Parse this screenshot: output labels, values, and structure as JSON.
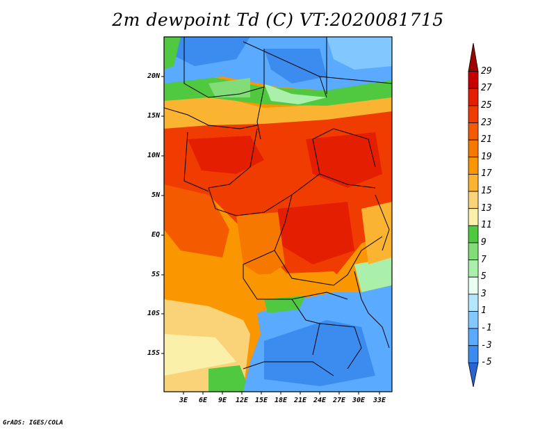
{
  "title": "2m dewpoint Td (C) VT:2020081715",
  "credit": "GrADS: IGES/COLA",
  "latitude_labels": [
    "20N",
    "15N",
    "10N",
    "5N",
    "EQ",
    "5S",
    "10S",
    "15S"
  ],
  "longitude_labels": [
    "3E",
    "6E",
    "9E",
    "12E",
    "15E",
    "18E",
    "21E",
    "24E",
    "27E",
    "30E",
    "33E"
  ],
  "colorbar": {
    "labels": [
      "29",
      "27",
      "25",
      "23",
      "21",
      "19",
      "17",
      "15",
      "13",
      "11",
      "9",
      "7",
      "5",
      "3",
      "1",
      "-1",
      "-3",
      "-5"
    ],
    "colors": [
      "#a00000",
      "#c80000",
      "#e41e00",
      "#f03c00",
      "#f45a00",
      "#f67800",
      "#f99600",
      "#fab432",
      "#fad278",
      "#faf0aa",
      "#50c840",
      "#82dc78",
      "#aaf0aa",
      "#e6fff0",
      "#b4e6ff",
      "#82c8ff",
      "#5aaaff",
      "#3c8cf0",
      "#2864d2"
    ]
  },
  "colors": {
    "ocean_south": "#f99600",
    "sahara": "#3c8cf0",
    "sahel_hot": "#f03c00",
    "southern_dry": "#3c8cf0"
  }
}
